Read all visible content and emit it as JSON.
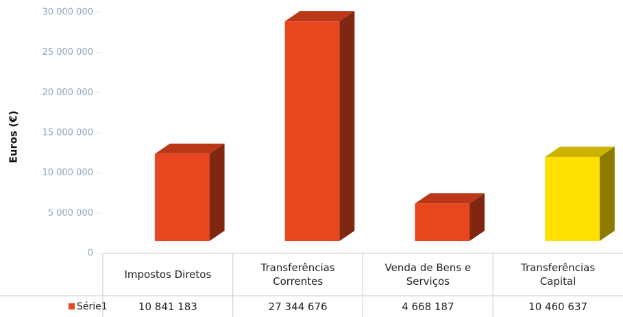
{
  "chart_data": {
    "type": "bar3d",
    "y_label": "Euros (€)",
    "categories": [
      "Impostos Diretos",
      "Transferências Correntes",
      "Venda de Bens e Serviços",
      "Transferências Capital"
    ],
    "series": [
      {
        "name": "Série1",
        "color": "#e8461e",
        "colors": [
          "#e8461e",
          "#e8461e",
          "#e8461e",
          "#ffe000"
        ],
        "values": [
          10841183,
          27344676,
          4668187,
          10460637
        ],
        "value_labels": [
          "10 841 183",
          "27 344 676",
          "4 668 187",
          "10 460 637"
        ]
      }
    ],
    "ylim": [
      0,
      30000000
    ],
    "yticks": [
      {
        "value": 0,
        "label": "0"
      },
      {
        "value": 5000000,
        "label": "5 000 000"
      },
      {
        "value": 10000000,
        "label": "10 000 000"
      },
      {
        "value": 15000000,
        "label": "15 000 000"
      },
      {
        "value": 20000000,
        "label": "20 000 000"
      },
      {
        "value": 25000000,
        "label": "25 000 000"
      },
      {
        "value": 30000000,
        "label": "30 000 000"
      }
    ],
    "data_table": true
  }
}
